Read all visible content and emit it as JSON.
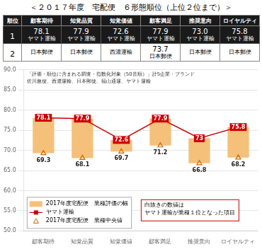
{
  "chart_data": {
    "type": "bar",
    "title": "＜２０１７年度　宅配便　６形態順位（上位２位まで）＞",
    "table": {
      "headers": [
        "順位",
        "顧客期待",
        "知覚品質",
        "知覚価値",
        "顧客満足",
        "推奨意向",
        "ロイヤルティ"
      ],
      "rows": [
        [
          [
            "1"
          ],
          [
            "78.1",
            "ヤマト運輸"
          ],
          [
            "77.9",
            "ヤマト運輸"
          ],
          [
            "72.6",
            "ヤマト運輸"
          ],
          [
            "77.9",
            "ヤマト運輸"
          ],
          [
            "73.0",
            "ヤマト運輸"
          ],
          [
            "75.8",
            "ヤマト運輸"
          ]
        ],
        [
          [
            "2"
          ],
          [
            "日本郵便"
          ],
          [
            "日本郵便"
          ],
          [
            "西濃運輸"
          ],
          [
            "73.7",
            "日本郵便"
          ],
          [
            "日本郵便"
          ],
          [
            "日本郵便"
          ]
        ]
      ]
    },
    "categories": [
      "顧客期待",
      "知覚品質",
      "知覚価値",
      "顧客満足",
      "推奨意向",
      "ロイヤルティ"
    ],
    "series": [
      {
        "name": "2017年度宅配便　業種評価の幅",
        "type": "bar",
        "color": "#F5C07A",
        "values": [
          [
            69.3,
            78.1
          ],
          [
            68.1,
            77.9
          ],
          [
            69.7,
            72.6
          ],
          [
            71.2,
            77.9
          ],
          [
            66.8,
            73.0
          ],
          [
            68.2,
            75.8
          ]
        ]
      },
      {
        "name": "ヤマト運輸",
        "type": "line",
        "color": "#CC0000",
        "marker": "square",
        "line_style": "solid",
        "values": [
          78.1,
          77.9,
          72.6,
          77.9,
          73.0,
          75.8
        ],
        "data_labels": true
      },
      {
        "name": "2017年度宅配便　業種中央値",
        "type": "line",
        "color": "#CC6600",
        "marker": "triangle",
        "line_style": "none",
        "values": [
          69.3,
          68.1,
          69.7,
          71.2,
          66.8,
          68.2
        ],
        "data_labels": true
      }
    ],
    "ylim": [
      50.0,
      90.0
    ],
    "yticks": [
      {
        "value": 50,
        "label": "50.0"
      },
      {
        "value": 55,
        "label": "55.0"
      },
      {
        "value": 60,
        "label": "60.0"
      },
      {
        "value": 65,
        "label": "65.0"
      },
      {
        "value": 70,
        "label": "70.0"
      },
      {
        "value": 75,
        "label": "75.0"
      },
      {
        "value": 80,
        "label": "80.0"
      },
      {
        "value": 85,
        "label": "85.0"
      },
      {
        "value": 90,
        "label": "90.0"
      }
    ],
    "grid": true,
    "legend": "lower left",
    "annotations": [
      "「評価・順位に含まれる調査・指数化対象（50音順）」計5企業・ブランド\n佐川急便、西濃運輸、日本郵便、福山通運、ヤマト運輸",
      "白抜きの数値は\nヤマト運輸が業種１位となった項目"
    ]
  }
}
